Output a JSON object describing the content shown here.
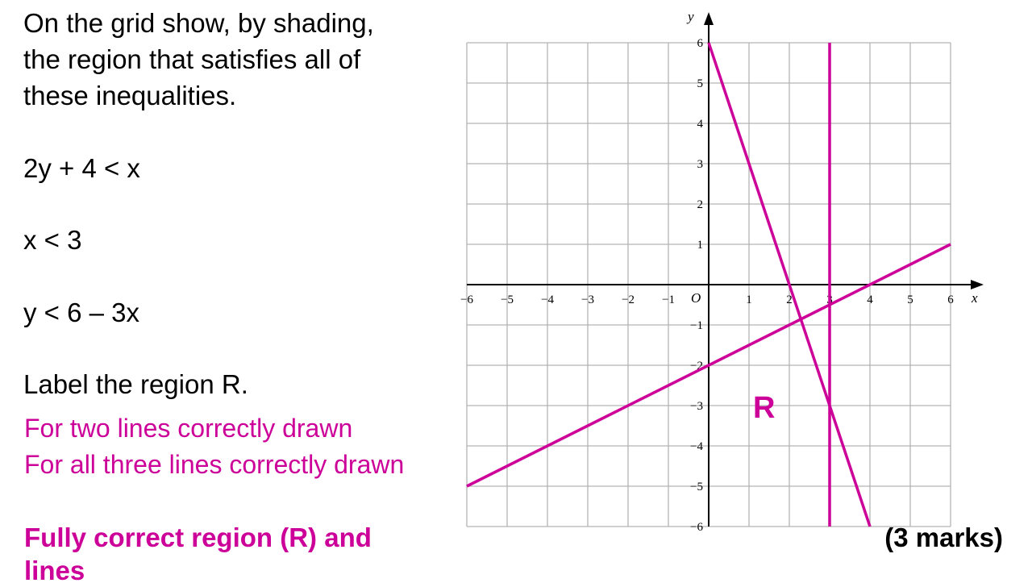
{
  "question": {
    "lines": [
      "On the grid show, by shading,",
      "the region that satisfies all of",
      "these inequalities."
    ],
    "inequalities": [
      "2y + 4 < x",
      "x < 3",
      "y < 6 – 3x"
    ],
    "instruction": "Label the region R."
  },
  "mark_scheme": {
    "lines": [
      "For two lines correctly drawn",
      "For all three lines correctly drawn"
    ],
    "final_lines": [
      "Fully correct region (R) and",
      "lines"
    ]
  },
  "marks": "(3 marks)",
  "graph": {
    "x_axis_label": "x",
    "y_axis_label": "y",
    "origin_label": "O",
    "region_label": "R",
    "x_ticks": [
      "−6",
      "−5",
      "−4",
      "−3",
      "−2",
      "−1",
      "1",
      "2",
      "3",
      "4",
      "5",
      "6"
    ],
    "y_ticks": [
      "6",
      "5",
      "4",
      "3",
      "2",
      "1",
      "−1",
      "−2",
      "−3",
      "−4",
      "−5",
      "−6"
    ],
    "x_range": [
      -6,
      6
    ],
    "y_range": [
      -6,
      6
    ],
    "line_color": "#cc0099",
    "lines_drawn": [
      {
        "equation": "y = 6 − 3x",
        "from": [
          0,
          6
        ],
        "to": [
          4,
          -6
        ]
      },
      {
        "equation": "2y + 4 = x",
        "from": [
          -6,
          -5
        ],
        "to": [
          6,
          1
        ]
      },
      {
        "equation": "x = 3",
        "from": [
          3,
          6
        ],
        "to": [
          3,
          -6
        ]
      }
    ],
    "region_label_position": [
      1.1,
      -3.5
    ]
  }
}
